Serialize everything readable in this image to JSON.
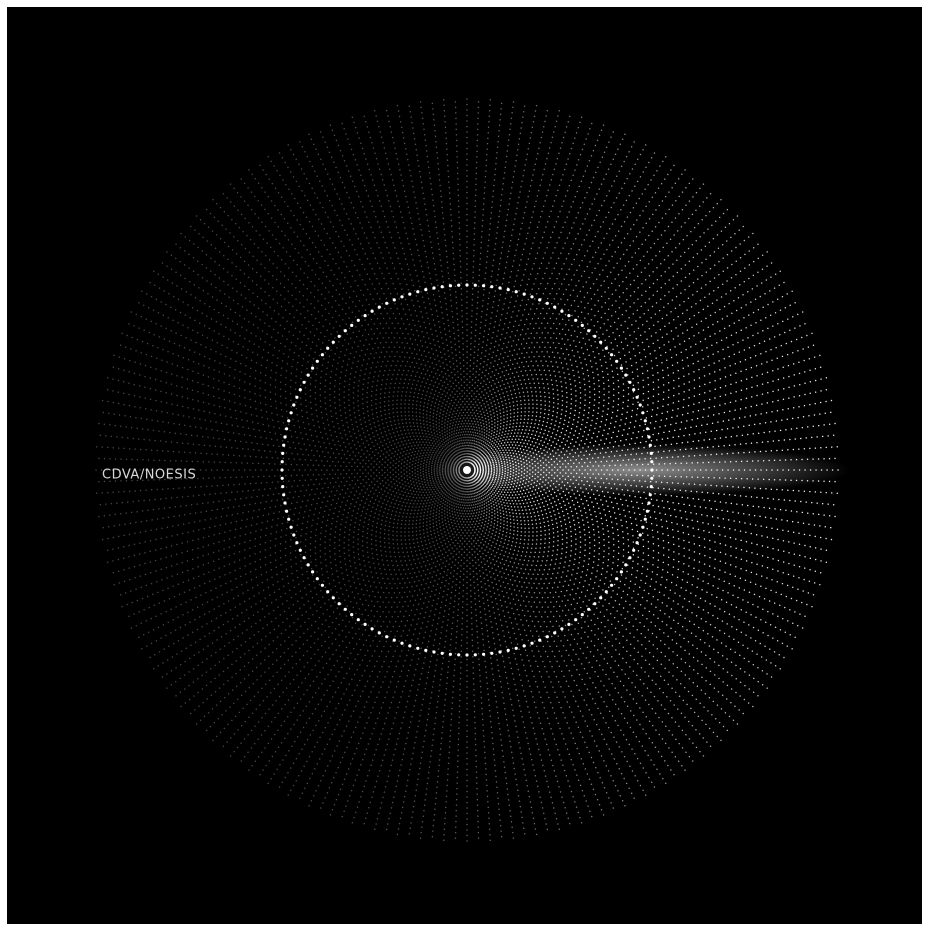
{
  "label": "CDVA/NOESIS"
}
